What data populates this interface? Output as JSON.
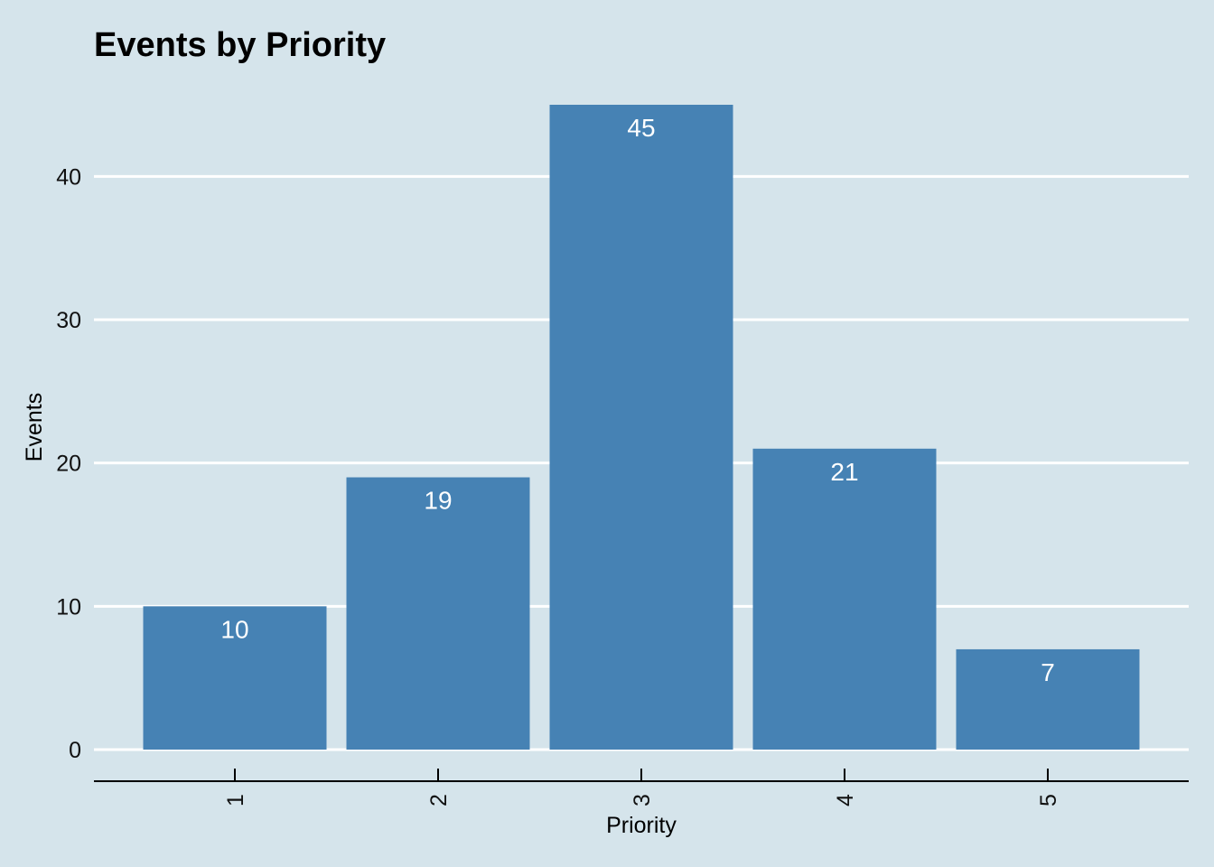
{
  "chart_data": {
    "type": "bar",
    "title": "Events by Priority",
    "xlabel": "Priority",
    "ylabel": "Events",
    "categories": [
      "1",
      "2",
      "3",
      "4",
      "5"
    ],
    "values": [
      10,
      19,
      45,
      21,
      7
    ],
    "data_labels": [
      "10",
      "19",
      "45",
      "21",
      "7"
    ],
    "yticks": [
      0,
      10,
      20,
      30,
      40
    ],
    "ytick_labels": [
      "0",
      "10",
      "20",
      "30",
      "40"
    ],
    "ylim": [
      0,
      45
    ],
    "grid": "horizontal-major",
    "legend": "none",
    "colors": {
      "background": "#d5e4eb",
      "bar": "#4682b4",
      "grid": "#ffffff",
      "axis": "#000000",
      "data_label": "#ffffff"
    }
  }
}
